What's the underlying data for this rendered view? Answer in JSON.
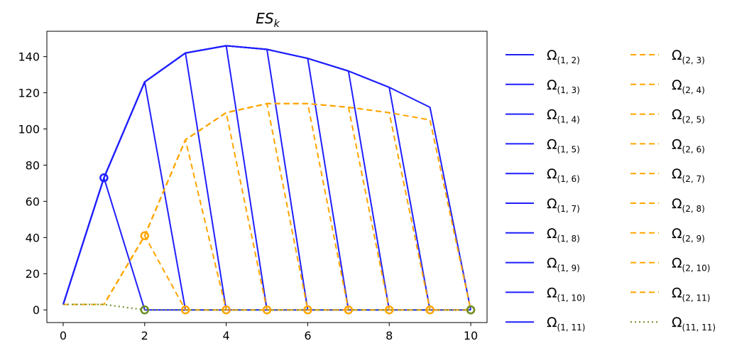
{
  "chart_data": {
    "type": "line",
    "title_base": "ES",
    "title_sub": "k",
    "xlabel": "",
    "ylabel": "",
    "xlim": [
      -0.4,
      10.4
    ],
    "ylim": [
      -7,
      154
    ],
    "xticks": [
      0,
      2,
      4,
      6,
      8,
      10
    ],
    "yticks": [
      0,
      20,
      40,
      60,
      80,
      100,
      120,
      140
    ],
    "grid": false,
    "legend": {
      "placement": "outside-right",
      "columns": 2,
      "symbol": "Ω"
    },
    "colors": {
      "omega1": "#1f1fff",
      "omega2": "#ffa500",
      "omega11": "#6b8e23"
    },
    "series": [
      {
        "name": "(1, 2)",
        "style": "solid",
        "color": "#1f1fff",
        "x": [
          0,
          1,
          2
        ],
        "y": [
          3,
          73,
          0
        ],
        "markers": [
          [
            1,
            73
          ]
        ]
      },
      {
        "name": "(1, 3)",
        "style": "solid",
        "color": "#1f1fff",
        "x": [
          0,
          1,
          2,
          3
        ],
        "y": [
          3,
          73,
          126,
          0
        ]
      },
      {
        "name": "(1, 4)",
        "style": "solid",
        "color": "#1f1fff",
        "x": [
          0,
          1,
          2,
          3,
          4
        ],
        "y": [
          3,
          73,
          126,
          142,
          0
        ]
      },
      {
        "name": "(1, 5)",
        "style": "solid",
        "color": "#1f1fff",
        "x": [
          0,
          1,
          2,
          3,
          4,
          5
        ],
        "y": [
          3,
          73,
          126,
          142,
          146,
          0
        ]
      },
      {
        "name": "(1, 6)",
        "style": "solid",
        "color": "#1f1fff",
        "x": [
          0,
          1,
          2,
          3,
          4,
          5,
          6
        ],
        "y": [
          3,
          73,
          126,
          142,
          146,
          144,
          0
        ]
      },
      {
        "name": "(1, 7)",
        "style": "solid",
        "color": "#1f1fff",
        "x": [
          0,
          1,
          2,
          3,
          4,
          5,
          6,
          7
        ],
        "y": [
          3,
          73,
          126,
          142,
          146,
          144,
          139,
          0
        ]
      },
      {
        "name": "(1, 8)",
        "style": "solid",
        "color": "#1f1fff",
        "x": [
          0,
          1,
          2,
          3,
          4,
          5,
          6,
          7,
          8
        ],
        "y": [
          3,
          73,
          126,
          142,
          146,
          144,
          139,
          132,
          0
        ]
      },
      {
        "name": "(1, 9)",
        "style": "solid",
        "color": "#1f1fff",
        "x": [
          0,
          1,
          2,
          3,
          4,
          5,
          6,
          7,
          8,
          9
        ],
        "y": [
          3,
          73,
          126,
          142,
          146,
          144,
          139,
          132,
          123,
          0
        ]
      },
      {
        "name": "(1, 10)",
        "style": "solid",
        "color": "#1f1fff",
        "x": [
          0,
          1,
          2,
          3,
          4,
          5,
          6,
          7,
          8,
          9,
          10
        ],
        "y": [
          3,
          73,
          126,
          142,
          146,
          144,
          139,
          132,
          123,
          112,
          0
        ]
      },
      {
        "name": "(1, 11)",
        "style": "solid",
        "color": "#1f1fff",
        "x": [
          2,
          3,
          4,
          5,
          6,
          7,
          8,
          9,
          10
        ],
        "y": [
          0,
          0,
          0,
          0,
          0,
          0,
          0,
          0,
          0
        ]
      },
      {
        "name": "(2, 3)",
        "style": "dashed",
        "color": "#ffa500",
        "x": [
          0,
          1,
          2,
          3
        ],
        "y": [
          3,
          3,
          41,
          0
        ],
        "markers": [
          [
            2,
            41
          ]
        ]
      },
      {
        "name": "(2, 4)",
        "style": "dashed",
        "color": "#ffa500",
        "x": [
          0,
          1,
          2,
          3,
          4
        ],
        "y": [
          3,
          3,
          41,
          94,
          0
        ]
      },
      {
        "name": "(2, 5)",
        "style": "dashed",
        "color": "#ffa500",
        "x": [
          0,
          1,
          2,
          3,
          4,
          5
        ],
        "y": [
          3,
          3,
          41,
          94,
          109,
          0
        ]
      },
      {
        "name": "(2, 6)",
        "style": "dashed",
        "color": "#ffa500",
        "x": [
          0,
          1,
          2,
          3,
          4,
          5,
          6
        ],
        "y": [
          3,
          3,
          41,
          94,
          109,
          114,
          0
        ]
      },
      {
        "name": "(2, 7)",
        "style": "dashed",
        "color": "#ffa500",
        "x": [
          0,
          1,
          2,
          3,
          4,
          5,
          6,
          7
        ],
        "y": [
          3,
          3,
          41,
          94,
          109,
          114,
          114,
          0
        ]
      },
      {
        "name": "(2, 8)",
        "style": "dashed",
        "color": "#ffa500",
        "x": [
          0,
          1,
          2,
          3,
          4,
          5,
          6,
          7,
          8
        ],
        "y": [
          3,
          3,
          41,
          94,
          109,
          114,
          114,
          112,
          0
        ]
      },
      {
        "name": "(2, 9)",
        "style": "dashed",
        "color": "#ffa500",
        "x": [
          0,
          1,
          2,
          3,
          4,
          5,
          6,
          7,
          8,
          9
        ],
        "y": [
          3,
          3,
          41,
          94,
          109,
          114,
          114,
          112,
          109,
          0
        ]
      },
      {
        "name": "(2, 10)",
        "style": "dashed",
        "color": "#ffa500",
        "x": [
          0,
          1,
          2,
          3,
          4,
          5,
          6,
          7,
          8,
          9,
          10
        ],
        "y": [
          3,
          3,
          41,
          94,
          109,
          114,
          114,
          112,
          109,
          105,
          0
        ]
      },
      {
        "name": "(2, 11)",
        "style": "dashed",
        "color": "#ffa500",
        "x": [
          3,
          4,
          5,
          6,
          7,
          8,
          9,
          10
        ],
        "y": [
          0,
          0,
          0,
          0,
          0,
          0,
          0,
          0
        ],
        "markers": [
          [
            3,
            0
          ],
          [
            4,
            0
          ],
          [
            5,
            0
          ],
          [
            6,
            0
          ],
          [
            7,
            0
          ],
          [
            8,
            0
          ],
          [
            9,
            0
          ],
          [
            10,
            0
          ]
        ]
      },
      {
        "name": "(11, 11)",
        "style": "dotted",
        "color": "#6b8e23",
        "x": [
          0,
          1,
          2,
          3,
          4,
          5,
          6,
          7,
          8,
          9,
          10
        ],
        "y": [
          3,
          3,
          0,
          0,
          0,
          0,
          0,
          0,
          0,
          0,
          0
        ],
        "markers": [
          [
            2,
            0
          ],
          [
            10,
            0
          ]
        ]
      }
    ]
  }
}
